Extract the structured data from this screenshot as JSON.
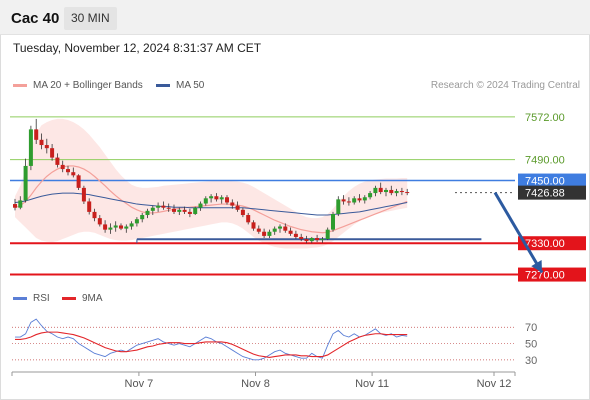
{
  "header": {
    "symbol": "Cac 40",
    "timeframe": "30 MIN"
  },
  "datetime": "Tuesday, November 12, 2024 8:31:37 AM CET",
  "legend": {
    "items": [
      {
        "label": "MA 20 + Bollinger Bands",
        "color": "#f4a09a"
      },
      {
        "label": "MA 50",
        "color": "#3a5a9a"
      }
    ],
    "copyright": "Research © 2024 Trading Central"
  },
  "rsi_legend": {
    "items": [
      {
        "label": "RSI",
        "color": "#5b7fd6"
      },
      {
        "label": "9MA",
        "color": "#e3262a"
      }
    ]
  },
  "colors": {
    "up_candle": "#2e9c2e",
    "down_candle": "#c8201d",
    "resistance": "#8fce5e",
    "support": "#e3141b",
    "current_price": "#3f7de0",
    "ma50": "#3a5a9a",
    "ma20": "#f4a09a",
    "bollinger_fill": "#fde3e1",
    "arrow": "#2c5aa0",
    "price_tag": "#333333"
  },
  "chart_data": [
    {
      "type": "candlestick",
      "title": "",
      "ylim": [
        7250,
        7610
      ],
      "x_tick_labels": [
        "Nov 7",
        "Nov 8",
        "Nov 11",
        "Nov 12"
      ],
      "x_tick_index": [
        23,
        45,
        67,
        90
      ],
      "levels": [
        {
          "label": "7572.00",
          "value": 7572,
          "kind": "resistance"
        },
        {
          "label": "7490.00",
          "value": 7490,
          "kind": "resistance"
        },
        {
          "label": "7450.00",
          "value": 7450,
          "kind": "current"
        },
        {
          "label": "7426.88",
          "value": 7426.88,
          "kind": "last"
        },
        {
          "label": "7330.00",
          "value": 7330,
          "kind": "support"
        },
        {
          "label": "7270.00",
          "value": 7270,
          "kind": "support"
        }
      ],
      "candles": [
        [
          7405,
          7415,
          7393,
          7398
        ],
        [
          7398,
          7420,
          7395,
          7412
        ],
        [
          7412,
          7492,
          7408,
          7478
        ],
        [
          7478,
          7555,
          7470,
          7548
        ],
        [
          7548,
          7568,
          7520,
          7528
        ],
        [
          7528,
          7540,
          7510,
          7518
        ],
        [
          7518,
          7530,
          7502,
          7512
        ],
        [
          7512,
          7520,
          7488,
          7494
        ],
        [
          7494,
          7502,
          7475,
          7480
        ],
        [
          7480,
          7488,
          7466,
          7472
        ],
        [
          7472,
          7478,
          7460,
          7466
        ],
        [
          7466,
          7475,
          7456,
          7460
        ],
        [
          7460,
          7462,
          7432,
          7436
        ],
        [
          7436,
          7440,
          7405,
          7410
        ],
        [
          7410,
          7416,
          7385,
          7390
        ],
        [
          7390,
          7396,
          7372,
          7378
        ],
        [
          7378,
          7384,
          7362,
          7366
        ],
        [
          7366,
          7374,
          7350,
          7356
        ],
        [
          7356,
          7368,
          7348,
          7360
        ],
        [
          7360,
          7372,
          7352,
          7364
        ],
        [
          7364,
          7368,
          7355,
          7358
        ],
        [
          7358,
          7366,
          7350,
          7362
        ],
        [
          7362,
          7372,
          7356,
          7368
        ],
        [
          7368,
          7380,
          7362,
          7376
        ],
        [
          7376,
          7388,
          7370,
          7384
        ],
        [
          7384,
          7396,
          7378,
          7392
        ],
        [
          7392,
          7402,
          7384,
          7398
        ],
        [
          7398,
          7408,
          7390,
          7402
        ],
        [
          7402,
          7410,
          7394,
          7398
        ],
        [
          7398,
          7406,
          7390,
          7396
        ],
        [
          7396,
          7404,
          7386,
          7390
        ],
        [
          7390,
          7398,
          7384,
          7394
        ],
        [
          7394,
          7400,
          7386,
          7390
        ],
        [
          7390,
          7396,
          7380,
          7386
        ],
        [
          7386,
          7400,
          7384,
          7398
        ],
        [
          7398,
          7410,
          7392,
          7406
        ],
        [
          7406,
          7420,
          7402,
          7416
        ],
        [
          7416,
          7424,
          7408,
          7420
        ],
        [
          7420,
          7426,
          7410,
          7414
        ],
        [
          7414,
          7422,
          7406,
          7418
        ],
        [
          7418,
          7422,
          7404,
          7408
        ],
        [
          7408,
          7414,
          7396,
          7402
        ],
        [
          7402,
          7410,
          7390,
          7394
        ],
        [
          7394,
          7398,
          7380,
          7384
        ],
        [
          7384,
          7388,
          7366,
          7370
        ],
        [
          7370,
          7374,
          7354,
          7358
        ],
        [
          7358,
          7364,
          7348,
          7352
        ],
        [
          7352,
          7358,
          7340,
          7344
        ],
        [
          7344,
          7356,
          7340,
          7352
        ],
        [
          7352,
          7362,
          7346,
          7358
        ],
        [
          7358,
          7366,
          7350,
          7362
        ],
        [
          7362,
          7368,
          7350,
          7354
        ],
        [
          7354,
          7360,
          7344,
          7348
        ],
        [
          7348,
          7354,
          7338,
          7342
        ],
        [
          7342,
          7348,
          7334,
          7338
        ],
        [
          7338,
          7344,
          7330,
          7334
        ],
        [
          7334,
          7342,
          7330,
          7340
        ],
        [
          7340,
          7346,
          7332,
          7336
        ],
        [
          7336,
          7342,
          7331,
          7338
        ],
        [
          7338,
          7360,
          7336,
          7356
        ],
        [
          7356,
          7390,
          7352,
          7386
        ],
        [
          7386,
          7420,
          7382,
          7414
        ],
        [
          7414,
          7422,
          7404,
          7410
        ],
        [
          7410,
          7418,
          7402,
          7408
        ],
        [
          7408,
          7420,
          7404,
          7416
        ],
        [
          7416,
          7424,
          7408,
          7412
        ],
        [
          7412,
          7422,
          7406,
          7418
        ],
        [
          7418,
          7430,
          7414,
          7426
        ],
        [
          7426,
          7440,
          7420,
          7436
        ],
        [
          7436,
          7446,
          7424,
          7428
        ],
        [
          7428,
          7436,
          7420,
          7432
        ],
        [
          7432,
          7440,
          7422,
          7426
        ],
        [
          7426,
          7434,
          7420,
          7430
        ],
        [
          7430,
          7436,
          7422,
          7428
        ],
        [
          7428,
          7434,
          7422,
          7427
        ]
      ],
      "ma20": [
        7398,
        7402,
        7410,
        7422,
        7436,
        7448,
        7458,
        7466,
        7472,
        7476,
        7478,
        7478,
        7476,
        7472,
        7466,
        7458,
        7449,
        7440,
        7430,
        7421,
        7413,
        7406,
        7399,
        7394,
        7390,
        7388,
        7388,
        7389,
        7391,
        7393,
        7395,
        7397,
        7398,
        7399,
        7400,
        7401,
        7402,
        7403,
        7404,
        7405,
        7405,
        7404,
        7403,
        7401,
        7398,
        7394,
        7389,
        7384,
        7379,
        7374,
        7370,
        7366,
        7362,
        7359,
        7356,
        7354,
        7352,
        7351,
        7350,
        7351,
        7354,
        7358,
        7362,
        7366,
        7370,
        7374,
        7378,
        7382,
        7386,
        7390,
        7394,
        7398,
        7402,
        7406,
        7410
      ],
      "bollinger_upper": [
        7420,
        7440,
        7470,
        7510,
        7540,
        7556,
        7562,
        7566,
        7568,
        7568,
        7566,
        7562,
        7556,
        7548,
        7538,
        7526,
        7514,
        7500,
        7486,
        7472,
        7460,
        7450,
        7442,
        7438,
        7436,
        7436,
        7437,
        7438,
        7440,
        7441,
        7442,
        7443,
        7444,
        7445,
        7446,
        7447,
        7448,
        7449,
        7450,
        7450,
        7450,
        7449,
        7448,
        7446,
        7443,
        7438,
        7432,
        7426,
        7420,
        7414,
        7408,
        7402,
        7396,
        7390,
        7384,
        7380,
        7378,
        7378,
        7380,
        7386,
        7396,
        7408,
        7420,
        7430,
        7438,
        7444,
        7448,
        7450,
        7452,
        7453,
        7454,
        7454,
        7454,
        7455,
        7455
      ],
      "bollinger_lower": [
        7380,
        7370,
        7360,
        7350,
        7340,
        7335,
        7333,
        7332,
        7334,
        7338,
        7342,
        7346,
        7350,
        7352,
        7352,
        7350,
        7346,
        7342,
        7338,
        7336,
        7335,
        7335,
        7336,
        7338,
        7340,
        7342,
        7344,
        7346,
        7348,
        7350,
        7352,
        7354,
        7356,
        7358,
        7360,
        7362,
        7364,
        7366,
        7368,
        7370,
        7370,
        7368,
        7364,
        7358,
        7350,
        7342,
        7335,
        7330,
        7326,
        7323,
        7321,
        7320,
        7320,
        7320,
        7320,
        7320,
        7321,
        7322,
        7324,
        7328,
        7334,
        7342,
        7350,
        7358,
        7366,
        7372,
        7378,
        7382,
        7385,
        7388,
        7390,
        7392,
        7394,
        7396,
        7398
      ],
      "ma50": [
        7408,
        7409,
        7411,
        7414,
        7417,
        7420,
        7422,
        7424,
        7425,
        7426,
        7426,
        7426,
        7425,
        7424,
        7423,
        7421,
        7419,
        7417,
        7415,
        7413,
        7411,
        7409,
        7407,
        7405,
        7404,
        7403,
        7402,
        7401,
        7400,
        7400,
        7399,
        7399,
        7399,
        7398,
        7398,
        7398,
        7398,
        7398,
        7398,
        7398,
        7398,
        7398,
        7398,
        7398,
        7397,
        7396,
        7395,
        7394,
        7393,
        7392,
        7391,
        7390,
        7389,
        7388,
        7387,
        7386,
        7385,
        7384,
        7384,
        7384,
        7385,
        7386,
        7387,
        7388,
        7389,
        7390,
        7392,
        7394,
        7396,
        7398,
        7400,
        7402,
        7404,
        7406,
        7408
      ],
      "range_line": {
        "value": 7330,
        "from_index": 23,
        "to_index": 88
      },
      "projection_arrow": {
        "from_index": 90,
        "from_value": 7426.88,
        "to_index": 100,
        "to_value": 7270
      }
    },
    {
      "type": "line",
      "title": "RSI",
      "ylim": [
        20,
        85
      ],
      "y_tick_labels": [
        "70",
        "50",
        "30"
      ],
      "y_ticks": [
        70,
        50,
        30
      ],
      "series": [
        {
          "name": "RSI",
          "color": "#5b7fd6",
          "values": [
            58,
            58,
            62,
            76,
            80,
            72,
            65,
            62,
            58,
            56,
            58,
            56,
            50,
            46,
            42,
            38,
            36,
            34,
            38,
            40,
            42,
            40,
            44,
            48,
            50,
            52,
            54,
            56,
            52,
            50,
            48,
            50,
            48,
            46,
            50,
            54,
            58,
            56,
            52,
            50,
            46,
            42,
            38,
            34,
            32,
            30,
            30,
            32,
            36,
            40,
            42,
            38,
            36,
            34,
            32,
            32,
            38,
            34,
            32,
            48,
            62,
            66,
            60,
            58,
            62,
            58,
            60,
            64,
            68,
            62,
            60,
            62,
            58,
            60,
            59
          ]
        },
        {
          "name": "9MA",
          "color": "#e3262a",
          "values": [
            55,
            55,
            56,
            58,
            61,
            63,
            64,
            64,
            64,
            63,
            62,
            61,
            59,
            57,
            54,
            51,
            48,
            45,
            43,
            41,
            40,
            40,
            41,
            42,
            44,
            46,
            47,
            49,
            50,
            51,
            51,
            51,
            50,
            50,
            50,
            51,
            52,
            52,
            52,
            52,
            51,
            49,
            46,
            43,
            40,
            37,
            35,
            34,
            33,
            34,
            35,
            36,
            36,
            36,
            35,
            35,
            34,
            34,
            34,
            36,
            40,
            44,
            48,
            52,
            55,
            58,
            60,
            61,
            62,
            62,
            61,
            61,
            61,
            61,
            61
          ]
        }
      ]
    }
  ]
}
